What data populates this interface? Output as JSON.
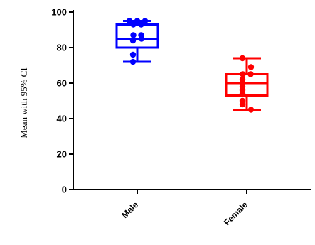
{
  "chart_data": {
    "type": "box",
    "ylabel": "Mean with 95% CI",
    "xlabel": "",
    "ylim": [
      0,
      100
    ],
    "yticks": [
      0,
      20,
      40,
      60,
      80,
      100
    ],
    "categories": [
      "Male",
      "Female"
    ],
    "grid": false,
    "legend": "none",
    "series": [
      {
        "category": "Male",
        "color": "#0000ff",
        "whisker_low": 72,
        "q1": 80,
        "median": 85,
        "q3": 93,
        "whisker_high": 95,
        "points": [
          95,
          95,
          95,
          93,
          93,
          87,
          87,
          85,
          84,
          76,
          72
        ]
      },
      {
        "category": "Female",
        "color": "#ff0000",
        "whisker_low": 45,
        "q1": 53,
        "median": 60,
        "q3": 65,
        "whisker_high": 74,
        "points": [
          74,
          69,
          65,
          65,
          62,
          60,
          58,
          56,
          54,
          50,
          48,
          45
        ]
      }
    ]
  }
}
